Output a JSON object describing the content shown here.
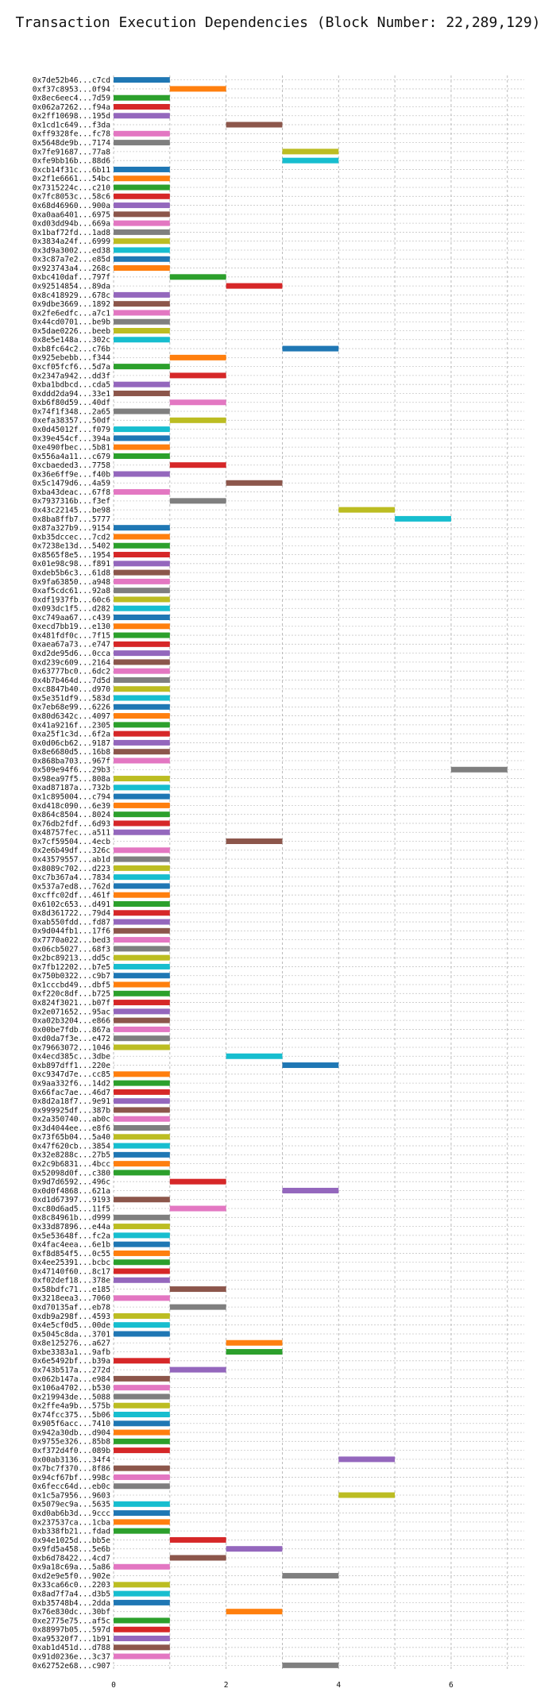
{
  "chart_data": {
    "type": "bar",
    "orientation": "horizontal",
    "title": "Transaction Execution Dependencies (Block Number: 22,289,129)",
    "xlabel": "",
    "ylabel": "",
    "xlim": [
      0,
      7.3
    ],
    "xticks": [
      0,
      2,
      4,
      6
    ],
    "grid": true,
    "bar_colors": [
      "#1f77b4",
      "#ff7f0e",
      "#2ca02c",
      "#d62728",
      "#9467bd",
      "#8c564b",
      "#e377c2",
      "#7f7f7f",
      "#bcbd22",
      "#17becf"
    ],
    "transactions": [
      {
        "hash": "0x7de52b46...c7cd",
        "start": 0,
        "end": 1
      },
      {
        "hash": "0xf37c8953...0f94",
        "start": 1,
        "end": 2
      },
      {
        "hash": "0x8ec6eec4...7d59",
        "start": 0,
        "end": 1
      },
      {
        "hash": "0x062a7262...f94a",
        "start": 0,
        "end": 1
      },
      {
        "hash": "0x2ff10698...195d",
        "start": 0,
        "end": 1
      },
      {
        "hash": "0x1cd1c649...f3da",
        "start": 2,
        "end": 3
      },
      {
        "hash": "0xff9328fe...fc78",
        "start": 0,
        "end": 1
      },
      {
        "hash": "0x5648de9b...7174",
        "start": 0,
        "end": 1
      },
      {
        "hash": "0x7fe91687...77a8",
        "start": 3,
        "end": 4
      },
      {
        "hash": "0xfe9bb16b...88d6",
        "start": 3,
        "end": 4
      },
      {
        "hash": "0xcb14f31c...6b11",
        "start": 0,
        "end": 1
      },
      {
        "hash": "0x2f1e6661...54bc",
        "start": 0,
        "end": 1
      },
      {
        "hash": "0x7315224c...c210",
        "start": 0,
        "end": 1
      },
      {
        "hash": "0x7fc8053c...58c6",
        "start": 0,
        "end": 1
      },
      {
        "hash": "0x68d46960...900a",
        "start": 0,
        "end": 1
      },
      {
        "hash": "0xa0aa6401...6975",
        "start": 0,
        "end": 1
      },
      {
        "hash": "0xd03dd94b...669a",
        "start": 0,
        "end": 1
      },
      {
        "hash": "0x1baf72fd...1ad8",
        "start": 0,
        "end": 1
      },
      {
        "hash": "0x3834a24f...6999",
        "start": 0,
        "end": 1
      },
      {
        "hash": "0x3d9a3002...ed38",
        "start": 0,
        "end": 1
      },
      {
        "hash": "0x3c87a7e2...e85d",
        "start": 0,
        "end": 1
      },
      {
        "hash": "0x923743a4...268c",
        "start": 0,
        "end": 1
      },
      {
        "hash": "0xbc410daf...797f",
        "start": 1,
        "end": 2
      },
      {
        "hash": "0x92514854...89da",
        "start": 2,
        "end": 3
      },
      {
        "hash": "0x8c418929...678c",
        "start": 0,
        "end": 1
      },
      {
        "hash": "0x9dbe3669...1892",
        "start": 0,
        "end": 1
      },
      {
        "hash": "0x2fe6edfc...a7c1",
        "start": 0,
        "end": 1
      },
      {
        "hash": "0x44cd0701...be9b",
        "start": 0,
        "end": 1
      },
      {
        "hash": "0x5dae0226...beeb",
        "start": 0,
        "end": 1
      },
      {
        "hash": "0x8e5e148a...302c",
        "start": 0,
        "end": 1
      },
      {
        "hash": "0xb8fc64c2...c76b",
        "start": 3,
        "end": 4
      },
      {
        "hash": "0x925ebebb...f344",
        "start": 1,
        "end": 2
      },
      {
        "hash": "0xcf05fcf6...5d7a",
        "start": 0,
        "end": 1
      },
      {
        "hash": "0x2347a942...dd3f",
        "start": 1,
        "end": 2
      },
      {
        "hash": "0xba1bdbcd...cda5",
        "start": 0,
        "end": 1
      },
      {
        "hash": "0xddd2da94...33e1",
        "start": 0,
        "end": 1
      },
      {
        "hash": "0xb6f80d59...40df",
        "start": 1,
        "end": 2
      },
      {
        "hash": "0x74f1f348...2a65",
        "start": 0,
        "end": 1
      },
      {
        "hash": "0xefa38357...50df",
        "start": 1,
        "end": 2
      },
      {
        "hash": "0x0d45012f...f079",
        "start": 0,
        "end": 1
      },
      {
        "hash": "0x39e454cf...394a",
        "start": 0,
        "end": 1
      },
      {
        "hash": "0xe490fbec...5b81",
        "start": 0,
        "end": 1
      },
      {
        "hash": "0x556a4a11...c679",
        "start": 0,
        "end": 1
      },
      {
        "hash": "0xcbaeded3...7758",
        "start": 1,
        "end": 2
      },
      {
        "hash": "0x36e6ff9e...f40b",
        "start": 0,
        "end": 1
      },
      {
        "hash": "0x5c1479d6...4a59",
        "start": 2,
        "end": 3
      },
      {
        "hash": "0xba43deac...67f8",
        "start": 0,
        "end": 1
      },
      {
        "hash": "0x7937316b...f3ef",
        "start": 1,
        "end": 2
      },
      {
        "hash": "0x43c22145...be98",
        "start": 4,
        "end": 5
      },
      {
        "hash": "0x8ba8ffb7...5777",
        "start": 5,
        "end": 6
      },
      {
        "hash": "0x87a327b9...9154",
        "start": 0,
        "end": 1
      },
      {
        "hash": "0xb35dccec...7cd2",
        "start": 0,
        "end": 1
      },
      {
        "hash": "0x7238e13d...5402",
        "start": 0,
        "end": 1
      },
      {
        "hash": "0x8565f8e5...1954",
        "start": 0,
        "end": 1
      },
      {
        "hash": "0x01e98c98...f891",
        "start": 0,
        "end": 1
      },
      {
        "hash": "0xdeb5b6c3...61d8",
        "start": 0,
        "end": 1
      },
      {
        "hash": "0x9fa63850...a948",
        "start": 0,
        "end": 1
      },
      {
        "hash": "0xaf5cdc61...92a8",
        "start": 0,
        "end": 1
      },
      {
        "hash": "0xdf1937fb...60c6",
        "start": 0,
        "end": 1
      },
      {
        "hash": "0x093dc1f5...d282",
        "start": 0,
        "end": 1
      },
      {
        "hash": "0xc749aa67...c439",
        "start": 0,
        "end": 1
      },
      {
        "hash": "0xecd7bb19...e130",
        "start": 0,
        "end": 1
      },
      {
        "hash": "0x481fdf0c...7f15",
        "start": 0,
        "end": 1
      },
      {
        "hash": "0xaea67a73...e747",
        "start": 0,
        "end": 1
      },
      {
        "hash": "0xd2de95d6...0cca",
        "start": 0,
        "end": 1
      },
      {
        "hash": "0xd239c609...2164",
        "start": 0,
        "end": 1
      },
      {
        "hash": "0x63777bc0...6dc2",
        "start": 0,
        "end": 1
      },
      {
        "hash": "0x4b7b464d...7d5d",
        "start": 0,
        "end": 1
      },
      {
        "hash": "0xc8847b40...d970",
        "start": 0,
        "end": 1
      },
      {
        "hash": "0x5e351df9...583d",
        "start": 0,
        "end": 1
      },
      {
        "hash": "0x7eb68e99...6226",
        "start": 0,
        "end": 1
      },
      {
        "hash": "0x80d6342c...4097",
        "start": 0,
        "end": 1
      },
      {
        "hash": "0x41a9216f...2305",
        "start": 0,
        "end": 1
      },
      {
        "hash": "0xa25f1c3d...6f2a",
        "start": 0,
        "end": 1
      },
      {
        "hash": "0x0d06cb62...9187",
        "start": 0,
        "end": 1
      },
      {
        "hash": "0x8e6680d5...16b8",
        "start": 0,
        "end": 1
      },
      {
        "hash": "0x868ba703...967f",
        "start": 0,
        "end": 1
      },
      {
        "hash": "0x509e94f6...29b3",
        "start": 6,
        "end": 7
      },
      {
        "hash": "0x98ea97f5...808a",
        "start": 0,
        "end": 1
      },
      {
        "hash": "0xad87187a...732b",
        "start": 0,
        "end": 1
      },
      {
        "hash": "0x1c895004...c794",
        "start": 0,
        "end": 1
      },
      {
        "hash": "0xd418c090...6e39",
        "start": 0,
        "end": 1
      },
      {
        "hash": "0x864c8504...8024",
        "start": 0,
        "end": 1
      },
      {
        "hash": "0x76db2fdf...6d93",
        "start": 0,
        "end": 1
      },
      {
        "hash": "0x48757fec...a511",
        "start": 0,
        "end": 1
      },
      {
        "hash": "0x7cf59504...4ecb",
        "start": 2,
        "end": 3
      },
      {
        "hash": "0x2e6b49df...326c",
        "start": 0,
        "end": 1
      },
      {
        "hash": "0x43579557...ab1d",
        "start": 0,
        "end": 1
      },
      {
        "hash": "0x8089c702...d223",
        "start": 0,
        "end": 1
      },
      {
        "hash": "0xc7b367a4...7834",
        "start": 0,
        "end": 1
      },
      {
        "hash": "0x537a7ed8...762d",
        "start": 0,
        "end": 1
      },
      {
        "hash": "0xcffc02df...461f",
        "start": 0,
        "end": 1
      },
      {
        "hash": "0x6102c653...d491",
        "start": 0,
        "end": 1
      },
      {
        "hash": "0x8d361722...79d4",
        "start": 0,
        "end": 1
      },
      {
        "hash": "0xab550fdd...fd87",
        "start": 0,
        "end": 1
      },
      {
        "hash": "0x9d044fb1...17f6",
        "start": 0,
        "end": 1
      },
      {
        "hash": "0x7770a022...bed3",
        "start": 0,
        "end": 1
      },
      {
        "hash": "0x06cb5027...68f3",
        "start": 0,
        "end": 1
      },
      {
        "hash": "0x2bc89213...dd5c",
        "start": 0,
        "end": 1
      },
      {
        "hash": "0x7fb12202...b7e5",
        "start": 0,
        "end": 1
      },
      {
        "hash": "0x750b0322...c9b7",
        "start": 0,
        "end": 1
      },
      {
        "hash": "0x1cccbd49...dbf5",
        "start": 0,
        "end": 1
      },
      {
        "hash": "0xf220c8df...b725",
        "start": 0,
        "end": 1
      },
      {
        "hash": "0x824f3021...b07f",
        "start": 0,
        "end": 1
      },
      {
        "hash": "0x2e071652...95ac",
        "start": 0,
        "end": 1
      },
      {
        "hash": "0xa02b3204...e866",
        "start": 0,
        "end": 1
      },
      {
        "hash": "0x00be7fdb...867a",
        "start": 0,
        "end": 1
      },
      {
        "hash": "0xd0da7f3e...e472",
        "start": 0,
        "end": 1
      },
      {
        "hash": "0x79663072...1046",
        "start": 0,
        "end": 1
      },
      {
        "hash": "0x4ecd385c...3dbe",
        "start": 2,
        "end": 3
      },
      {
        "hash": "0xb897dff1...220e",
        "start": 3,
        "end": 4
      },
      {
        "hash": "0xc9347d7e...cc85",
        "start": 0,
        "end": 1
      },
      {
        "hash": "0x9aa332f6...14d2",
        "start": 0,
        "end": 1
      },
      {
        "hash": "0x66fac7ae...46d7",
        "start": 0,
        "end": 1
      },
      {
        "hash": "0x8d2a18f7...9e91",
        "start": 0,
        "end": 1
      },
      {
        "hash": "0x999925df...387b",
        "start": 0,
        "end": 1
      },
      {
        "hash": "0x2a350740...ab0c",
        "start": 0,
        "end": 1
      },
      {
        "hash": "0x3d4044ee...e8f6",
        "start": 0,
        "end": 1
      },
      {
        "hash": "0x73f65b04...5a40",
        "start": 0,
        "end": 1
      },
      {
        "hash": "0x47f620cb...3854",
        "start": 0,
        "end": 1
      },
      {
        "hash": "0x32e8288c...27b5",
        "start": 0,
        "end": 1
      },
      {
        "hash": "0x2c9b6831...4bcc",
        "start": 0,
        "end": 1
      },
      {
        "hash": "0x52098d0f...c380",
        "start": 0,
        "end": 1
      },
      {
        "hash": "0x9d7d6592...496c",
        "start": 1,
        "end": 2
      },
      {
        "hash": "0x0d0f4868...621a",
        "start": 3,
        "end": 4
      },
      {
        "hash": "0xd1d67397...9193",
        "start": 0,
        "end": 1
      },
      {
        "hash": "0xc80d6ad5...11f5",
        "start": 1,
        "end": 2
      },
      {
        "hash": "0x8c84961b...d999",
        "start": 0,
        "end": 1
      },
      {
        "hash": "0x33d87896...e44a",
        "start": 0,
        "end": 1
      },
      {
        "hash": "0x5e53648f...fc2a",
        "start": 0,
        "end": 1
      },
      {
        "hash": "0x4fac4eea...6e1b",
        "start": 0,
        "end": 1
      },
      {
        "hash": "0xf8d854f5...0c55",
        "start": 0,
        "end": 1
      },
      {
        "hash": "0x4ee25391...bcbc",
        "start": 0,
        "end": 1
      },
      {
        "hash": "0x47140f60...8c17",
        "start": 0,
        "end": 1
      },
      {
        "hash": "0xf02def18...378e",
        "start": 0,
        "end": 1
      },
      {
        "hash": "0x58bdfc71...e185",
        "start": 1,
        "end": 2
      },
      {
        "hash": "0x3218eea3...7060",
        "start": 0,
        "end": 1
      },
      {
        "hash": "0xd70135af...eb78",
        "start": 1,
        "end": 2
      },
      {
        "hash": "0xdb9a298f...4593",
        "start": 0,
        "end": 1
      },
      {
        "hash": "0x4e5cf0d5...00de",
        "start": 0,
        "end": 1
      },
      {
        "hash": "0x5045c8da...3701",
        "start": 0,
        "end": 1
      },
      {
        "hash": "0x8e125276...a627",
        "start": 2,
        "end": 3
      },
      {
        "hash": "0xbe3383a1...9afb",
        "start": 2,
        "end": 3
      },
      {
        "hash": "0x6e5492bf...b39a",
        "start": 0,
        "end": 1
      },
      {
        "hash": "0x743b517a...272d",
        "start": 1,
        "end": 2
      },
      {
        "hash": "0x062b147a...e984",
        "start": 0,
        "end": 1
      },
      {
        "hash": "0x106a4702...b530",
        "start": 0,
        "end": 1
      },
      {
        "hash": "0x219943de...5088",
        "start": 0,
        "end": 1
      },
      {
        "hash": "0x2ffe4a9b...575b",
        "start": 0,
        "end": 1
      },
      {
        "hash": "0x74fcc375...5b06",
        "start": 0,
        "end": 1
      },
      {
        "hash": "0x905f6acc...7410",
        "start": 0,
        "end": 1
      },
      {
        "hash": "0x942a30db...d904",
        "start": 0,
        "end": 1
      },
      {
        "hash": "0x9755e326...85b8",
        "start": 0,
        "end": 1
      },
      {
        "hash": "0xf372d4f0...089b",
        "start": 0,
        "end": 1
      },
      {
        "hash": "0x00ab3136...34f4",
        "start": 4,
        "end": 5
      },
      {
        "hash": "0x7bc7f370...8f86",
        "start": 0,
        "end": 1
      },
      {
        "hash": "0x94cf67bf...998c",
        "start": 0,
        "end": 1
      },
      {
        "hash": "0x6fecc64d...eb0c",
        "start": 0,
        "end": 1
      },
      {
        "hash": "0x1c5a7956...9603",
        "start": 4,
        "end": 5
      },
      {
        "hash": "0x5079ec9a...5635",
        "start": 0,
        "end": 1
      },
      {
        "hash": "0xd0ab6b3d...9ccc",
        "start": 0,
        "end": 1
      },
      {
        "hash": "0x237537ca...1cba",
        "start": 0,
        "end": 1
      },
      {
        "hash": "0xb338fb21...fdad",
        "start": 0,
        "end": 1
      },
      {
        "hash": "0x94e1025d...bb5e",
        "start": 1,
        "end": 2
      },
      {
        "hash": "0x9fd5a458...5e6b",
        "start": 2,
        "end": 3
      },
      {
        "hash": "0xb6d78422...4cd7",
        "start": 1,
        "end": 2
      },
      {
        "hash": "0x9a18c69a...5a86",
        "start": 0,
        "end": 1
      },
      {
        "hash": "0xd2e9e5f0...902e",
        "start": 3,
        "end": 4
      },
      {
        "hash": "0x33ca66c0...2203",
        "start": 0,
        "end": 1
      },
      {
        "hash": "0x8ad7f7a4...d3b5",
        "start": 0,
        "end": 1
      },
      {
        "hash": "0xb35748b4...2dda",
        "start": 0,
        "end": 1
      },
      {
        "hash": "0x76e830dc...30bf",
        "start": 2,
        "end": 3
      },
      {
        "hash": "0xe2775e75...af5c",
        "start": 0,
        "end": 1
      },
      {
        "hash": "0x88997b05...597d",
        "start": 0,
        "end": 1
      },
      {
        "hash": "0xa95320f7...1b91",
        "start": 0,
        "end": 1
      },
      {
        "hash": "0xab1d451d...d788",
        "start": 0,
        "end": 1
      },
      {
        "hash": "0x91d0236e...3c37",
        "start": 0,
        "end": 1
      },
      {
        "hash": "0x62752e68...c907",
        "start": 3,
        "end": 4
      }
    ]
  }
}
